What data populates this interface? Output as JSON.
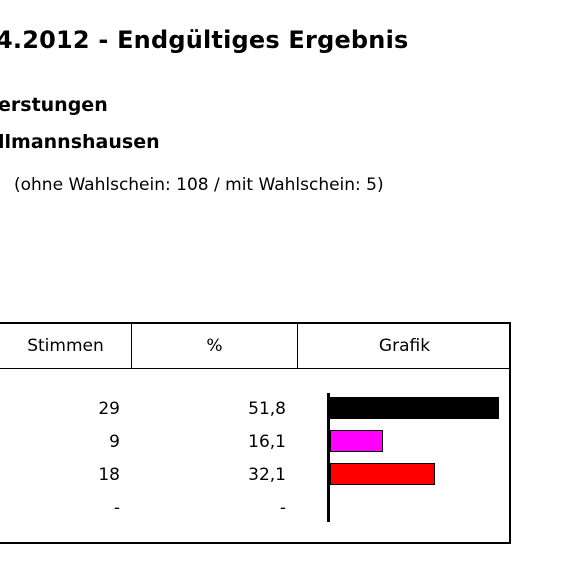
{
  "header": {
    "title": "4.2012 - Endgültiges Ergebnis",
    "region": "erstungen",
    "district": "llmannshausen",
    "ballot_note": "(ohne Wahlschein: 108 / mit Wahlschein: 5)"
  },
  "table": {
    "columns": [
      "Stimmen",
      "%",
      "Grafik"
    ],
    "rows": [
      {
        "votes": "29",
        "percent": "51,8",
        "share": 51.8,
        "color": "#000000"
      },
      {
        "votes": "9",
        "percent": "16,1",
        "share": 16.1,
        "color": "#ff00ff"
      },
      {
        "votes": "18",
        "percent": "32,1",
        "share": 32.1,
        "color": "#ff0000"
      },
      {
        "votes": "-",
        "percent": "-",
        "share": 0,
        "color": "#ffffff"
      }
    ]
  }
}
